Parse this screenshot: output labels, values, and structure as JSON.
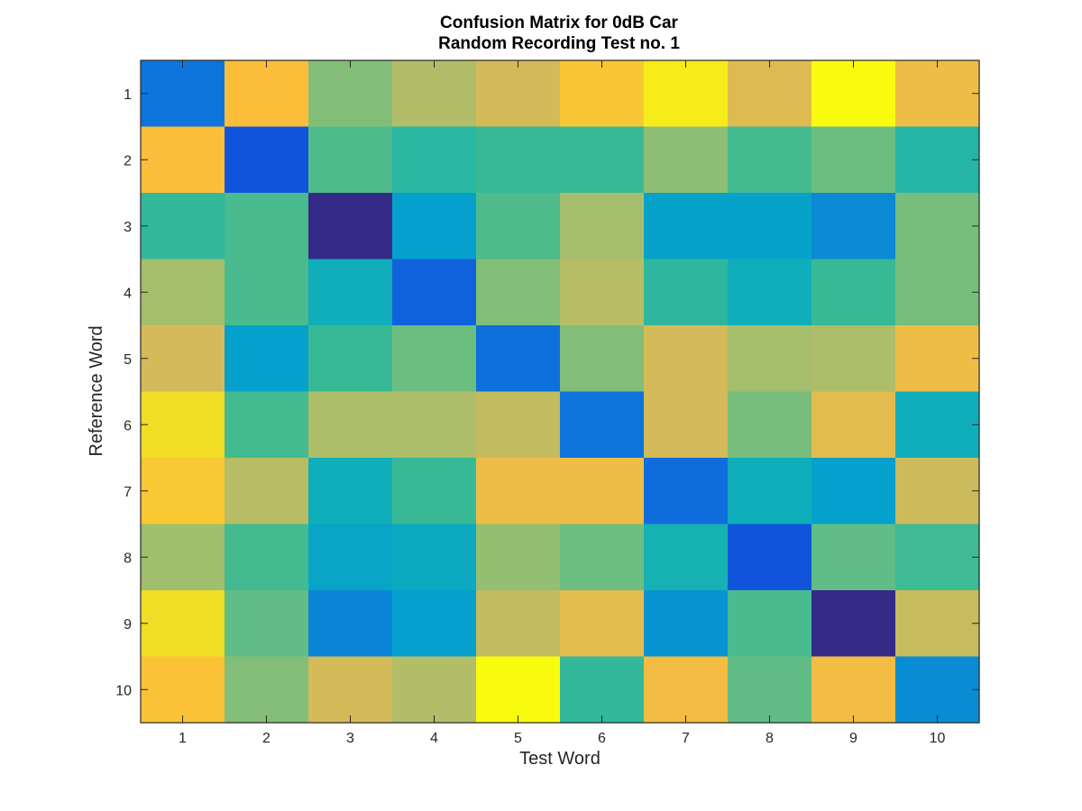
{
  "chart_data": {
    "type": "heatmap",
    "title": [
      "Confusion Matrix for 0dB Car",
      "Random Recording Test no. 1"
    ],
    "xlabel": "Test Word",
    "ylabel": "Reference Word",
    "x_ticks": [
      "1",
      "2",
      "3",
      "4",
      "5",
      "6",
      "7",
      "8",
      "9",
      "10"
    ],
    "y_ticks": [
      "1",
      "2",
      "3",
      "4",
      "5",
      "6",
      "7",
      "8",
      "9",
      "10"
    ],
    "colormap": "parula",
    "values": [
      [
        0.22,
        0.86,
        0.61,
        0.7,
        0.78,
        0.88,
        0.97,
        0.8,
        1.0,
        0.83
      ],
      [
        0.86,
        0.15,
        0.52,
        0.45,
        0.48,
        0.48,
        0.63,
        0.5,
        0.57,
        0.44
      ],
      [
        0.47,
        0.51,
        0.0,
        0.33,
        0.52,
        0.67,
        0.34,
        0.34,
        0.27,
        0.59
      ],
      [
        0.67,
        0.51,
        0.39,
        0.18,
        0.61,
        0.71,
        0.46,
        0.39,
        0.48,
        0.59
      ],
      [
        0.78,
        0.33,
        0.48,
        0.57,
        0.21,
        0.61,
        0.78,
        0.67,
        0.69,
        0.83
      ],
      [
        0.94,
        0.5,
        0.69,
        0.69,
        0.74,
        0.22,
        0.78,
        0.59,
        0.81,
        0.39
      ],
      [
        0.89,
        0.71,
        0.39,
        0.48,
        0.83,
        0.83,
        0.2,
        0.39,
        0.33,
        0.76
      ],
      [
        0.66,
        0.5,
        0.35,
        0.37,
        0.64,
        0.57,
        0.41,
        0.15,
        0.55,
        0.49
      ],
      [
        0.94,
        0.55,
        0.26,
        0.33,
        0.74,
        0.81,
        0.3,
        0.51,
        0.0,
        0.75
      ],
      [
        0.87,
        0.61,
        0.78,
        0.7,
        1.0,
        0.47,
        0.84,
        0.55,
        0.84,
        0.28
      ]
    ],
    "grid": false,
    "legend": "none"
  }
}
